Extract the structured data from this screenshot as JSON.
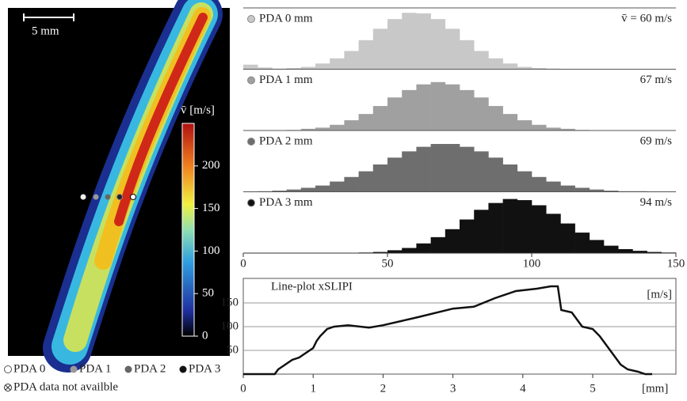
{
  "chart_data": [
    {
      "type": "colorbar",
      "scale_bar": "5 mm",
      "colorbar_label": "v̄ [m/s]",
      "ylim": [
        0,
        250
      ],
      "yticks": [
        0,
        50,
        100,
        150,
        200
      ],
      "legend": [
        "PDA 0",
        "PDA 1",
        "PDA 2",
        "PDA 3"
      ],
      "note": "PDA data not availble"
    },
    {
      "type": "histogram",
      "bins": [
        0,
        5,
        10,
        15,
        20,
        25,
        30,
        35,
        40,
        45,
        50,
        55,
        60,
        65,
        70,
        75,
        80,
        85,
        90,
        95,
        100,
        105,
        110,
        115,
        120,
        125,
        130,
        135,
        140,
        145,
        150
      ],
      "xlim": [
        0,
        150
      ],
      "xticks": [
        0,
        50,
        100,
        150
      ],
      "series": [
        {
          "name": "PDA 0 mm",
          "color": "#c8c8c8",
          "annotation": "v̄ = 60 m/s",
          "values": [
            8,
            3,
            1,
            2,
            4,
            10,
            19,
            32,
            51,
            71,
            88,
            99,
            98,
            88,
            71,
            51,
            32,
            19,
            10,
            4,
            2,
            1,
            0,
            0,
            0,
            0,
            0,
            0,
            0,
            0
          ]
        },
        {
          "name": "PDA 1 mm",
          "color": "#a0a0a0",
          "annotation": "67 m/s",
          "values": [
            0,
            0,
            0,
            1,
            3,
            5,
            10,
            18,
            29,
            43,
            58,
            71,
            81,
            85,
            81,
            71,
            58,
            43,
            29,
            18,
            10,
            5,
            3,
            1,
            0,
            0,
            0,
            0,
            0,
            0
          ]
        },
        {
          "name": "PDA 2 mm",
          "color": "#6e6e6e",
          "annotation": "69 m/s",
          "values": [
            0,
            1,
            2,
            4,
            7,
            11,
            18,
            26,
            36,
            48,
            60,
            71,
            79,
            84,
            84,
            79,
            71,
            60,
            48,
            36,
            26,
            18,
            11,
            7,
            4,
            2,
            1,
            1,
            0,
            0
          ]
        },
        {
          "name": "PDA 3 mm",
          "color": "#111111",
          "annotation": "94 m/s",
          "values": [
            0,
            0,
            0,
            0,
            0,
            0,
            0,
            0,
            1,
            2,
            5,
            9,
            17,
            28,
            42,
            59,
            76,
            88,
            95,
            93,
            84,
            69,
            52,
            36,
            23,
            13,
            7,
            4,
            2,
            1
          ]
        }
      ]
    },
    {
      "type": "line",
      "title": "Line-plot xSLIPI",
      "y_label": "[m/s]",
      "x_label": "[mm]",
      "xlim": [
        0,
        6.19
      ],
      "ylim": [
        0,
        190
      ],
      "xticks": [
        0,
        1,
        2,
        3,
        4,
        5
      ],
      "yticks": [
        50,
        100,
        150
      ],
      "grid": true,
      "x": [
        0,
        0.45,
        0.5,
        0.6,
        0.7,
        0.8,
        0.9,
        1.0,
        1.05,
        1.1,
        1.2,
        1.3,
        1.5,
        1.8,
        2.0,
        2.5,
        3.0,
        3.3,
        3.6,
        3.9,
        4.2,
        4.4,
        4.5,
        4.55,
        4.7,
        4.85,
        5.0,
        5.1,
        5.2,
        5.3,
        5.4,
        5.5,
        5.65,
        5.75,
        5.85
      ],
      "values": [
        0,
        0,
        10,
        20,
        30,
        35,
        45,
        55,
        70,
        80,
        95,
        100,
        103,
        98,
        103,
        120,
        138,
        142,
        160,
        175,
        180,
        185,
        185,
        135,
        130,
        100,
        95,
        80,
        60,
        40,
        20,
        10,
        5,
        0,
        0
      ]
    }
  ]
}
